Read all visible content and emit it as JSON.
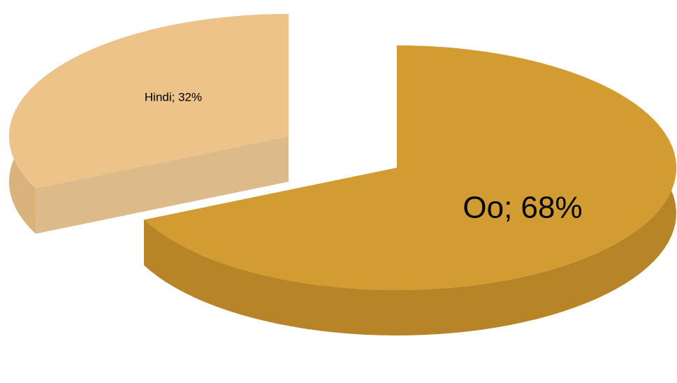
{
  "chart_data": {
    "type": "pie",
    "title": "",
    "categories": [
      "Oo",
      "Hindi"
    ],
    "values": [
      68,
      32
    ],
    "labels": [
      "Oo; 68%",
      "Hindi; 32%"
    ],
    "colors": [
      "#D39C33",
      "#EDC389"
    ],
    "side_colors": [
      "#B78427",
      "#D9B27C"
    ],
    "style": "3d-exploded",
    "legend": "none"
  }
}
